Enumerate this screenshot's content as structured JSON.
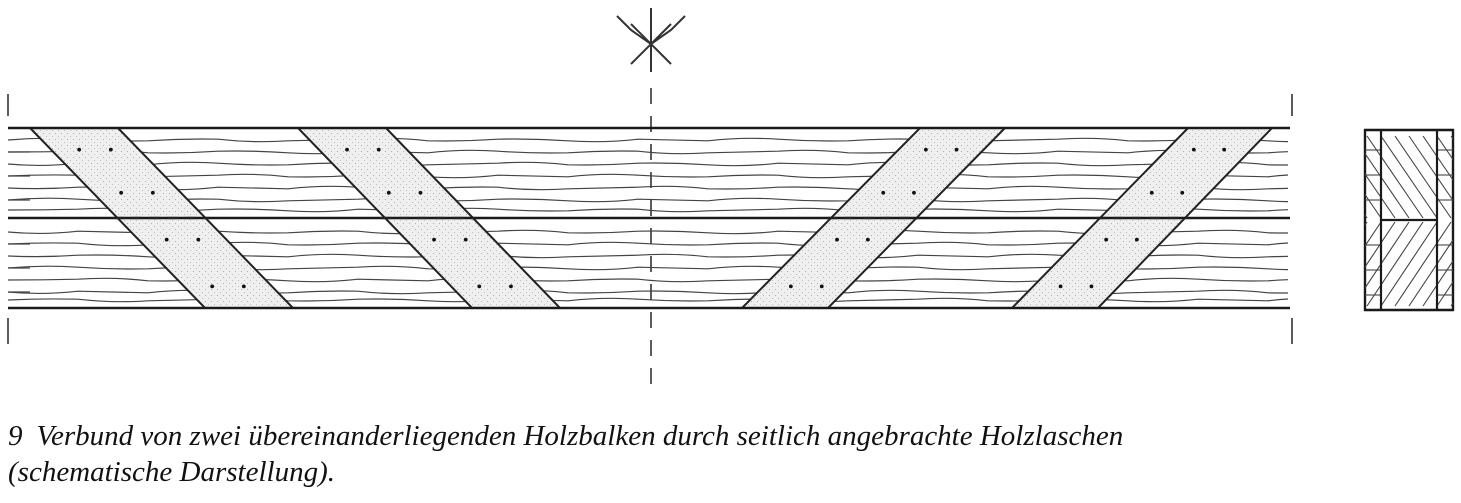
{
  "caption": {
    "number": "9",
    "line1": "Verbund von zwei übereinanderliegenden Holzbalken durch seitlich angebrachte Holzlaschen",
    "line2": "(schematische Darstellung)."
  },
  "colors": {
    "ink": "#222222",
    "strap_fill": "#eeeeee",
    "paper": "#ffffff"
  }
}
